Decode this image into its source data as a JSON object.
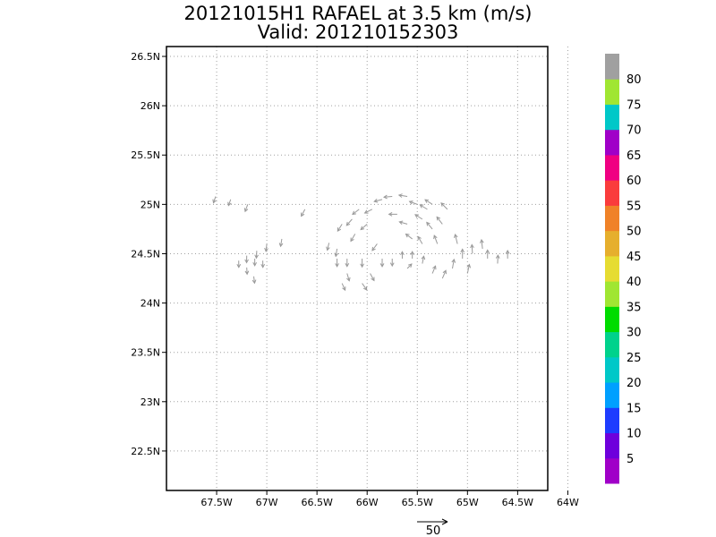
{
  "chart_data": {
    "type": "heatmap",
    "title": "20121015H1 RAFAEL at 3.5 km (m/s)",
    "subtitle": "Valid: 201210152303",
    "x_ticks": [
      "67.5W",
      "67W",
      "66.5W",
      "66W",
      "65.5W",
      "65W",
      "64.5W",
      "64W"
    ],
    "y_ticks": [
      "26.5N",
      "26N",
      "25.5N",
      "25N",
      "24.5N",
      "24N",
      "23.5N",
      "23N",
      "22.5N"
    ],
    "xlim": [
      -68.0,
      -64.2
    ],
    "ylim": [
      22.1,
      26.6
    ],
    "grid": true,
    "colorbar": {
      "labels": [
        "5",
        "10",
        "15",
        "20",
        "25",
        "30",
        "35",
        "40",
        "45",
        "50",
        "55",
        "60",
        "65",
        "70",
        "75",
        "80"
      ],
      "colors": [
        "#a000c8",
        "#6e00dc",
        "#1e3cff",
        "#00a0ff",
        "#00c8c8",
        "#00d28c",
        "#00dc00",
        "#a0e632",
        "#e6dc32",
        "#e6af2d",
        "#f08228",
        "#fa3c3c",
        "#f00082",
        "#a000c8",
        "#00c8c8",
        "#a0e632",
        "#a0a0a0"
      ]
    },
    "cells": [
      [
        -67.51,
        25.08,
        12
      ],
      [
        -67.36,
        25.05,
        10
      ],
      [
        -67.19,
        25.0,
        20
      ],
      [
        -66.62,
        24.95,
        22
      ],
      [
        -67.28,
        24.43,
        13
      ],
      [
        -67.2,
        24.48,
        15
      ],
      [
        -67.12,
        24.45,
        15
      ],
      [
        -67.04,
        24.43,
        13
      ],
      [
        -67.1,
        24.53,
        18
      ],
      [
        -67.0,
        24.6,
        20
      ],
      [
        -66.85,
        24.65,
        20
      ],
      [
        -67.13,
        24.27,
        13
      ],
      [
        -67.2,
        24.36,
        12
      ],
      [
        -66.38,
        24.61,
        20
      ],
      [
        -66.3,
        24.55,
        21
      ],
      [
        -66.25,
        24.2,
        20
      ],
      [
        -66.2,
        24.3,
        22
      ],
      [
        -66.2,
        24.45,
        23
      ],
      [
        -66.3,
        24.45,
        24
      ],
      [
        -66.05,
        24.2,
        25
      ],
      [
        -65.97,
        24.3,
        26
      ],
      [
        -66.05,
        24.45,
        27
      ],
      [
        -66.12,
        24.7,
        28
      ],
      [
        -66.0,
        24.8,
        28
      ],
      [
        -65.9,
        24.6,
        27
      ],
      [
        -65.85,
        24.45,
        24
      ],
      [
        -65.75,
        24.45,
        18
      ],
      [
        -65.65,
        24.45,
        14
      ],
      [
        -65.6,
        24.35,
        8
      ],
      [
        -65.55,
        24.45,
        15
      ],
      [
        -65.45,
        24.4,
        20
      ],
      [
        -65.35,
        24.3,
        25
      ],
      [
        -65.25,
        24.25,
        30
      ],
      [
        -65.95,
        24.95,
        27
      ],
      [
        -65.85,
        25.05,
        26
      ],
      [
        -65.75,
        25.08,
        27
      ],
      [
        -65.6,
        25.08,
        28
      ],
      [
        -65.5,
        25.0,
        27
      ],
      [
        -65.45,
        24.85,
        28
      ],
      [
        -65.7,
        24.9,
        27
      ],
      [
        -65.6,
        24.8,
        26
      ],
      [
        -65.55,
        24.65,
        25
      ],
      [
        -65.45,
        24.6,
        28
      ],
      [
        -65.35,
        24.75,
        31
      ],
      [
        -65.3,
        24.6,
        33
      ],
      [
        -65.1,
        24.6,
        40
      ],
      [
        -65.05,
        24.45,
        38
      ],
      [
        -65.15,
        24.35,
        36
      ],
      [
        -65.0,
        24.3,
        35
      ],
      [
        -64.95,
        24.5,
        34
      ],
      [
        -64.85,
        24.55,
        34
      ],
      [
        -64.8,
        24.45,
        30
      ],
      [
        -64.7,
        24.4,
        28
      ],
      [
        -64.6,
        24.45,
        25
      ],
      [
        -65.25,
        24.8,
        34
      ],
      [
        -65.2,
        24.95,
        32
      ],
      [
        -65.35,
        25.0,
        30
      ],
      [
        -65.4,
        24.95,
        30
      ],
      [
        -66.15,
        24.85,
        27
      ],
      [
        -66.25,
        24.8,
        26
      ],
      [
        -66.08,
        24.95,
        27
      ]
    ]
  },
  "vector_ref": {
    "label": "50"
  }
}
